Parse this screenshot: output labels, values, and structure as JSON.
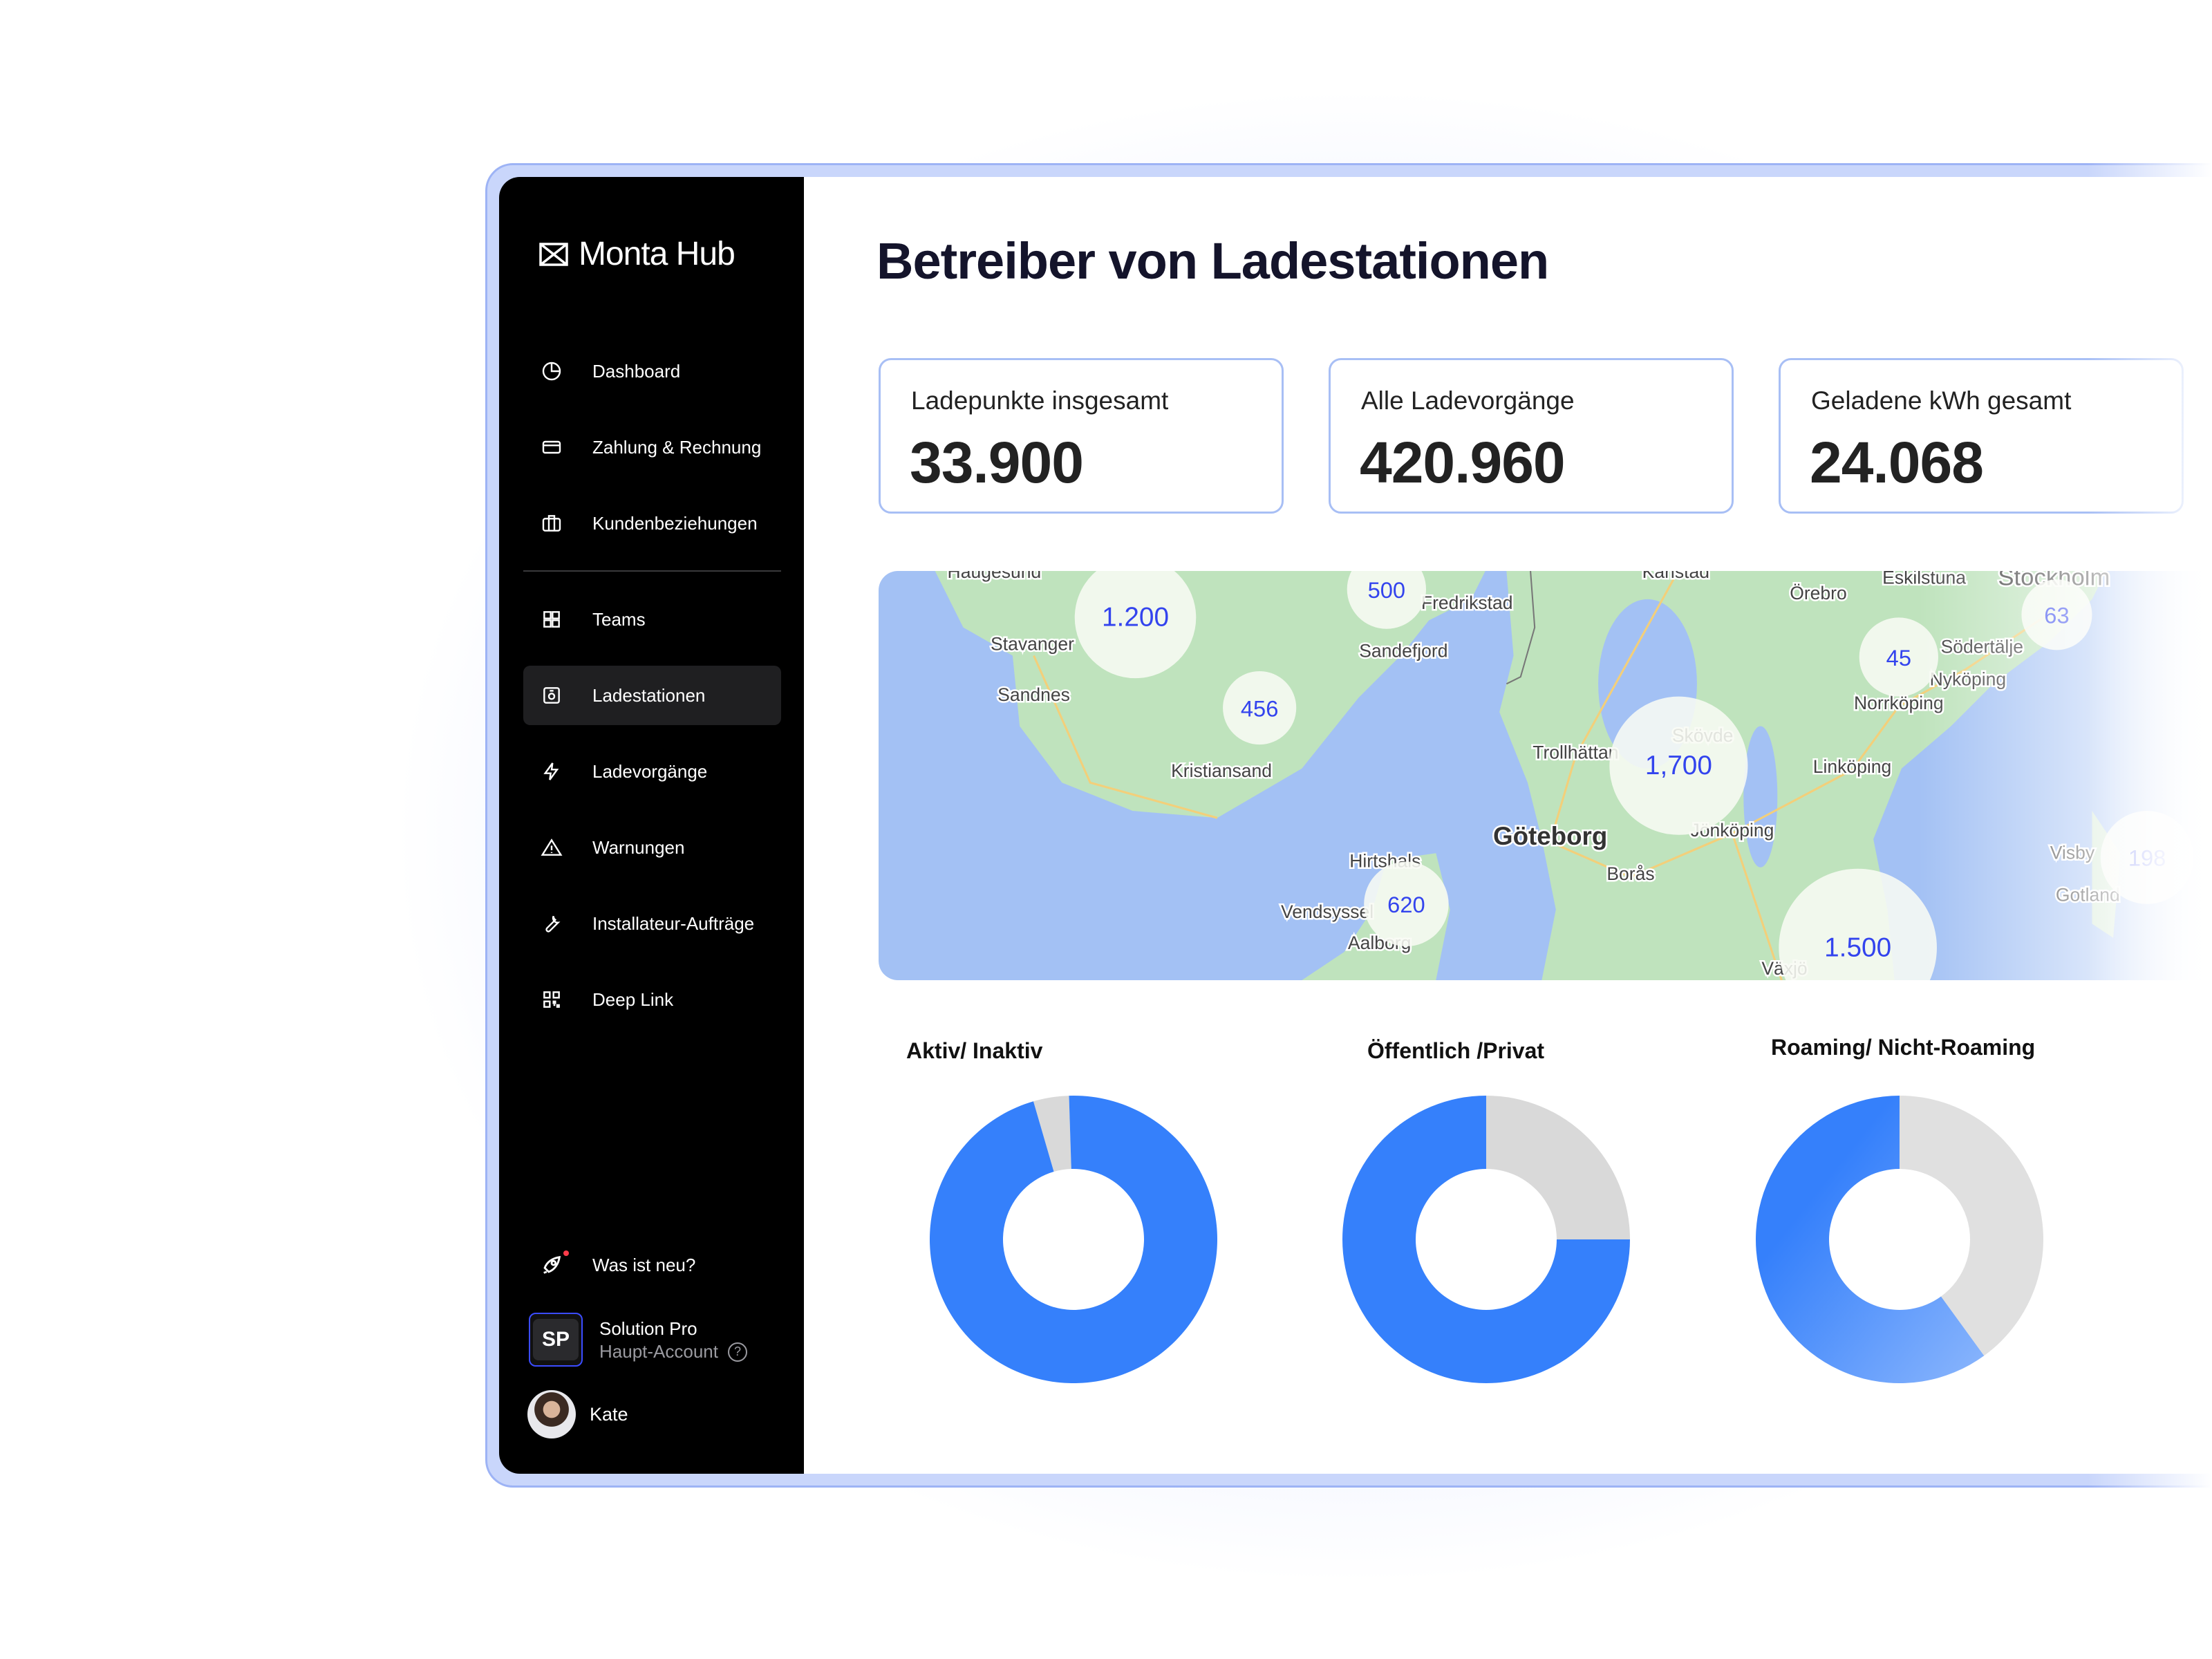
{
  "app": {
    "name": "Monta Hub"
  },
  "sidebar": {
    "items": [
      {
        "label": "Dashboard",
        "icon": "pie-chart-icon"
      },
      {
        "label": "Zahlung & Rechnung",
        "icon": "credit-card-icon"
      },
      {
        "label": "Kundenbeziehungen",
        "icon": "briefcase-icon"
      },
      {
        "label": "Teams",
        "icon": "grid-icon"
      },
      {
        "label": "Ladestationen",
        "icon": "charger-icon",
        "active": true
      },
      {
        "label": "Ladevorgänge",
        "icon": "lightning-icon"
      },
      {
        "label": "Warnungen",
        "icon": "warning-icon"
      },
      {
        "label": "Installateur-Aufträge",
        "icon": "wrench-icon"
      },
      {
        "label": "Deep Link",
        "icon": "qr-code-icon"
      }
    ],
    "whats_new": "Was ist neu?",
    "account": {
      "initials": "SP",
      "name": "Solution Pro",
      "role": "Haupt-Account"
    },
    "user": {
      "name": "Kate"
    }
  },
  "main": {
    "title": "Betreiber von Ladestationen",
    "cards": [
      {
        "label": "Ladepunkte insgesamt",
        "value": "33.900"
      },
      {
        "label": "Alle Ladevorgänge",
        "value": "420.960"
      },
      {
        "label": "Geladene kWh gesamt",
        "value": "24.068"
      }
    ],
    "map": {
      "clusters": [
        "1.200",
        "500",
        "456",
        "1,700",
        "45",
        "63",
        "620",
        "1.500",
        "198"
      ],
      "cities": [
        "Haugesund",
        "Stavanger",
        "Sandnes",
        "Kristiansand",
        "Fredrikstad",
        "Sandefjord",
        "Karlstad",
        "Örebro",
        "Eskilstuna",
        "Stockholm",
        "Södertälje",
        "Nyköping",
        "Norrköping",
        "Linköping",
        "Skövde",
        "Trollhättan",
        "Göteborg",
        "Borås",
        "Jönköping",
        "Hirtshals",
        "Vendsyssel",
        "Aalborg",
        "Växjö",
        "Visby",
        "Gotland"
      ]
    },
    "charts": [
      {
        "title": "Aktiv/ Inaktiv",
        "type": "donut",
        "primary_fraction": 0.96,
        "colors": [
          "#3580fb",
          "#d9d9d9"
        ]
      },
      {
        "title": "Öffentlich /Privat",
        "type": "donut",
        "primary_fraction": 0.75,
        "colors": [
          "#3580fb",
          "#d9d9d9"
        ]
      },
      {
        "title": "Roaming/ Nicht-Roaming",
        "type": "donut",
        "primary_fraction": 0.6,
        "colors": [
          "#3580fb",
          "#e0e0e0"
        ]
      }
    ]
  }
}
